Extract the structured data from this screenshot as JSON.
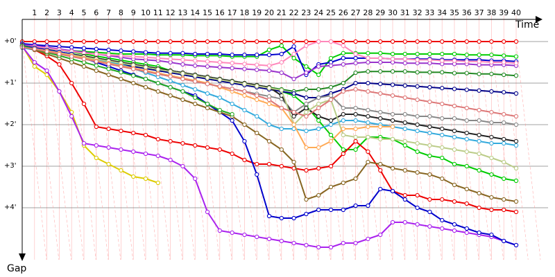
{
  "chart_data": {
    "type": "line",
    "x_axis": {
      "title": "Time",
      "ticks": [
        "1",
        "2",
        "3",
        "4",
        "5",
        "6",
        "7",
        "8",
        "9",
        "10",
        "11",
        "12",
        "13",
        "14",
        "15",
        "16",
        "17",
        "18",
        "19",
        "20",
        "21",
        "22",
        "23",
        "24",
        "25",
        "26",
        "27",
        "28",
        "29",
        "30",
        "31",
        "32",
        "33",
        "34",
        "35",
        "36",
        "37",
        "38",
        "39",
        "40"
      ]
    },
    "y_axis": {
      "title": "Gap",
      "ticks": [
        "+0'",
        "+1'",
        "+2'",
        "+3'",
        "+4'"
      ],
      "range": [
        0,
        5
      ]
    },
    "grid": true,
    "colors": {
      "grid": "#ffc0c0",
      "lap_line": "#ff9090",
      "axis": "#000000"
    },
    "series": [
      {
        "color": "#ee0000",
        "values": [
          0,
          0,
          0,
          0,
          0,
          0,
          0,
          0,
          0,
          0,
          0,
          0,
          0,
          0,
          0,
          0,
          0,
          0,
          0,
          0,
          0,
          0,
          0,
          0,
          0,
          0,
          0,
          0,
          0,
          0,
          0,
          0,
          0,
          0,
          0,
          0,
          0,
          0,
          0,
          0,
          0
        ]
      },
      {
        "color": "#00cc00",
        "values": [
          0.08,
          0.1,
          0.15,
          0.2,
          0.25,
          0.3,
          0.35,
          0.4,
          0.45,
          0.5,
          0.55,
          0.6,
          0.7,
          0.75,
          0.8,
          0.85,
          0.9,
          0.95,
          1.0,
          1.05,
          1.1,
          1.2,
          1.3,
          1.55,
          1.9,
          2.25,
          2.6,
          2.6,
          2.3,
          2.3,
          2.35,
          2.5,
          2.65,
          2.75,
          2.8,
          2.95,
          3.0,
          3.1,
          3.2,
          3.3,
          3.35
        ]
      },
      {
        "color": "#00cc00",
        "values": [
          0.1,
          0.15,
          0.18,
          0.2,
          0.22,
          0.24,
          0.26,
          0.28,
          0.3,
          0.3,
          0.3,
          0.32,
          0.32,
          0.32,
          0.34,
          0.34,
          0.34,
          0.36,
          0.36,
          0.36,
          0.2,
          0.1,
          0.4,
          0.6,
          0.8,
          0.4,
          0.28,
          0.28,
          0.28,
          0.28,
          0.3,
          0.3,
          0.3,
          0.3,
          0.3,
          0.3,
          0.32,
          0.32,
          0.32,
          0.34,
          0.36
        ]
      },
      {
        "color": "#0000cc",
        "values": [
          0.05,
          0.08,
          0.1,
          0.12,
          0.14,
          0.16,
          0.18,
          0.2,
          0.22,
          0.24,
          0.26,
          0.28,
          0.28,
          0.28,
          0.3,
          0.3,
          0.3,
          0.32,
          0.32,
          0.32,
          0.32,
          0.3,
          0.12,
          0.8,
          0.55,
          0.5,
          0.4,
          0.4,
          0.4,
          0.4,
          0.42,
          0.42,
          0.42,
          0.42,
          0.44,
          0.44,
          0.44,
          0.44,
          0.46,
          0.46,
          0.48
        ]
      },
      {
        "color": "#9933cc",
        "values": [
          0.08,
          0.1,
          0.14,
          0.18,
          0.22,
          0.26,
          0.3,
          0.34,
          0.38,
          0.42,
          0.44,
          0.46,
          0.5,
          0.55,
          0.58,
          0.6,
          0.62,
          0.64,
          0.66,
          0.68,
          0.7,
          0.75,
          0.9,
          0.75,
          0.6,
          0.58,
          0.55,
          0.52,
          0.5,
          0.5,
          0.5,
          0.52,
          0.52,
          0.52,
          0.54,
          0.54,
          0.54,
          0.56,
          0.56,
          0.56,
          0.58
        ]
      },
      {
        "color": "#ff88bb",
        "values": [
          0.1,
          0.12,
          0.16,
          0.2,
          0.24,
          0.28,
          0.3,
          0.32,
          0.34,
          0.36,
          0.38,
          0.4,
          0.42,
          0.44,
          0.46,
          0.48,
          0.5,
          0.52,
          0.54,
          0.56,
          0.58,
          0.5,
          0.3,
          0.1,
          0,
          0,
          0.1,
          0.3,
          0.4,
          0.4,
          0.42,
          0.42,
          0.44,
          0.44,
          0.46,
          0.46,
          0.48,
          0.48,
          0.5,
          0.5,
          0.52
        ]
      },
      {
        "color": "#228822",
        "values": [
          0.12,
          0.15,
          0.2,
          0.25,
          0.3,
          0.35,
          0.4,
          0.45,
          0.5,
          0.55,
          0.6,
          0.65,
          0.7,
          0.75,
          0.8,
          0.85,
          0.9,
          0.95,
          1.0,
          1.05,
          1.1,
          1.15,
          1.2,
          1.15,
          1.15,
          1.1,
          1.0,
          0.75,
          0.72,
          0.72,
          0.72,
          0.72,
          0.74,
          0.74,
          0.74,
          0.76,
          0.76,
          0.78,
          0.78,
          0.8,
          0.82
        ]
      },
      {
        "color": "#000088",
        "values": [
          0.12,
          0.18,
          0.22,
          0.28,
          0.34,
          0.4,
          0.45,
          0.5,
          0.55,
          0.6,
          0.65,
          0.7,
          0.75,
          0.8,
          0.85,
          0.9,
          0.95,
          1.0,
          1.05,
          1.1,
          1.15,
          1.2,
          1.25,
          1.35,
          1.35,
          1.25,
          1.15,
          1.0,
          1.0,
          1.02,
          1.04,
          1.06,
          1.08,
          1.1,
          1.12,
          1.14,
          1.16,
          1.18,
          1.2,
          1.22,
          1.25
        ]
      },
      {
        "color": "#33aadd",
        "values": [
          0.15,
          0.2,
          0.25,
          0.3,
          0.35,
          0.4,
          0.45,
          0.5,
          0.55,
          0.65,
          0.75,
          0.85,
          0.95,
          1.05,
          1.15,
          1.25,
          1.35,
          1.5,
          1.65,
          1.8,
          2.0,
          2.1,
          2.1,
          2.15,
          2.1,
          2.0,
          1.9,
          1.9,
          1.95,
          2.0,
          2.05,
          2.1,
          2.15,
          2.2,
          2.25,
          2.3,
          2.35,
          2.4,
          2.45,
          2.45,
          2.5
        ]
      },
      {
        "color": "#888888",
        "values": [
          0.12,
          0.18,
          0.24,
          0.3,
          0.36,
          0.42,
          0.48,
          0.54,
          0.6,
          0.66,
          0.72,
          0.78,
          0.84,
          0.9,
          0.96,
          1.02,
          1.08,
          1.14,
          1.2,
          1.26,
          1.32,
          1.38,
          1.7,
          1.5,
          1.35,
          1.3,
          1.6,
          1.6,
          1.65,
          1.7,
          1.75,
          1.75,
          1.8,
          1.8,
          1.85,
          1.85,
          1.9,
          1.9,
          1.95,
          1.95,
          2.0
        ]
      },
      {
        "color": "#222222",
        "values": [
          0.1,
          0.15,
          0.2,
          0.25,
          0.3,
          0.35,
          0.4,
          0.45,
          0.5,
          0.55,
          0.6,
          0.65,
          0.7,
          0.75,
          0.8,
          0.85,
          0.9,
          0.95,
          1.0,
          1.05,
          1.1,
          1.3,
          1.8,
          1.6,
          1.8,
          1.9,
          1.75,
          1.75,
          1.8,
          1.85,
          1.9,
          1.95,
          2.0,
          2.05,
          2.1,
          2.15,
          2.2,
          2.25,
          2.3,
          2.35,
          2.4
        ]
      },
      {
        "color": "#ddcc00",
        "values": [
          0.1,
          0.6,
          0.8,
          1.2,
          1.7,
          2.5,
          2.8,
          2.95,
          3.1,
          3.25,
          3.3,
          3.4
        ]
      },
      {
        "color": "#ee0000",
        "values": [
          0.1,
          0.2,
          0.35,
          0.55,
          1.0,
          1.5,
          2.05,
          2.1,
          2.15,
          2.2,
          2.25,
          2.35,
          2.4,
          2.45,
          2.5,
          2.55,
          2.6,
          2.7,
          2.85,
          2.95,
          2.95,
          3.0,
          3.05,
          3.1,
          3.05,
          3.0,
          2.7,
          2.4,
          2.65,
          3.1,
          3.6,
          3.7,
          3.7,
          3.8,
          3.8,
          3.85,
          3.9,
          4.0,
          4.05,
          4.05,
          4.1
        ]
      },
      {
        "color": "#aa22ee",
        "values": [
          0.12,
          0.5,
          0.7,
          1.2,
          1.8,
          2.45,
          2.5,
          2.55,
          2.6,
          2.65,
          2.7,
          2.75,
          2.85,
          3.0,
          3.3,
          4.1,
          4.55,
          4.6,
          4.65,
          4.7,
          4.75,
          4.8,
          4.85,
          4.9,
          4.95,
          4.95,
          4.85,
          4.85,
          4.75,
          4.65,
          4.35,
          4.35,
          4.4,
          4.45,
          4.5,
          4.55,
          4.6,
          4.65,
          4.7,
          4.8,
          4.9
        ]
      },
      {
        "color": "#0000cc",
        "values": [
          0.1,
          0.15,
          0.2,
          0.25,
          0.3,
          0.4,
          0.5,
          0.6,
          0.7,
          0.8,
          0.9,
          1.0,
          1.1,
          1.2,
          1.3,
          1.5,
          1.7,
          1.9,
          2.4,
          3.2,
          4.2,
          4.25,
          4.25,
          4.15,
          4.05,
          4.05,
          4.05,
          3.95,
          3.95,
          3.55,
          3.6,
          3.8,
          4.0,
          4.1,
          4.3,
          4.4,
          4.5,
          4.6,
          4.65,
          4.8,
          4.9
        ]
      },
      {
        "color": "#886622",
        "values": [
          0.12,
          0.2,
          0.3,
          0.4,
          0.5,
          0.6,
          0.7,
          0.8,
          0.9,
          1.0,
          1.1,
          1.2,
          1.3,
          1.4,
          1.5,
          1.6,
          1.7,
          1.8,
          2.0,
          2.2,
          2.4,
          2.6,
          2.9,
          3.8,
          3.7,
          3.5,
          3.4,
          3.3,
          2.9,
          2.95,
          3.05,
          3.1,
          3.15,
          3.2,
          3.3,
          3.45,
          3.55,
          3.65,
          3.75,
          3.8,
          3.85
        ]
      },
      {
        "color": "#bbcc88",
        "values": [
          0.12,
          0.17,
          0.22,
          0.27,
          0.32,
          0.37,
          0.42,
          0.47,
          0.52,
          0.57,
          0.62,
          0.67,
          0.72,
          0.77,
          0.82,
          0.87,
          0.92,
          0.97,
          1.02,
          1.07,
          1.12,
          1.17,
          2.0,
          1.7,
          1.5,
          1.4,
          2.25,
          2.3,
          2.3,
          2.35,
          2.35,
          2.4,
          2.45,
          2.5,
          2.55,
          2.6,
          2.65,
          2.7,
          2.8,
          2.9,
          3.05
        ]
      },
      {
        "color": "#ffaa55",
        "values": [
          0.13,
          0.18,
          0.22,
          0.28,
          0.34,
          0.4,
          0.46,
          0.52,
          0.58,
          0.64,
          0.7,
          0.76,
          0.82,
          0.88,
          0.94,
          1.0,
          1.1,
          1.2,
          1.3,
          1.4,
          1.5,
          1.6,
          2.0,
          2.55,
          2.55,
          2.4,
          2.1,
          2.1,
          2.05,
          2.05,
          2.05
        ]
      },
      {
        "color": "#22aa22",
        "values": [
          0.1,
          0.18,
          0.26,
          0.34,
          0.42,
          0.5,
          0.58,
          0.66,
          0.74,
          0.82,
          0.9,
          1.0,
          1.1,
          1.2,
          1.35,
          1.5,
          1.65,
          1.75
        ]
      },
      {
        "color": "#dd7777",
        "values": [
          0.14,
          0.18,
          0.24,
          0.3,
          0.36,
          0.42,
          0.48,
          0.54,
          0.6,
          0.66,
          0.72,
          0.78,
          0.84,
          0.9,
          0.96,
          1.02,
          1.08,
          1.14,
          1.2,
          1.3,
          1.4,
          1.6,
          1.7,
          1.8,
          1.6,
          1.4,
          1.2,
          1.15,
          1.2,
          1.25,
          1.3,
          1.35,
          1.4,
          1.45,
          1.5,
          1.55,
          1.6,
          1.65,
          1.7,
          1.75,
          1.8
        ]
      }
    ]
  }
}
